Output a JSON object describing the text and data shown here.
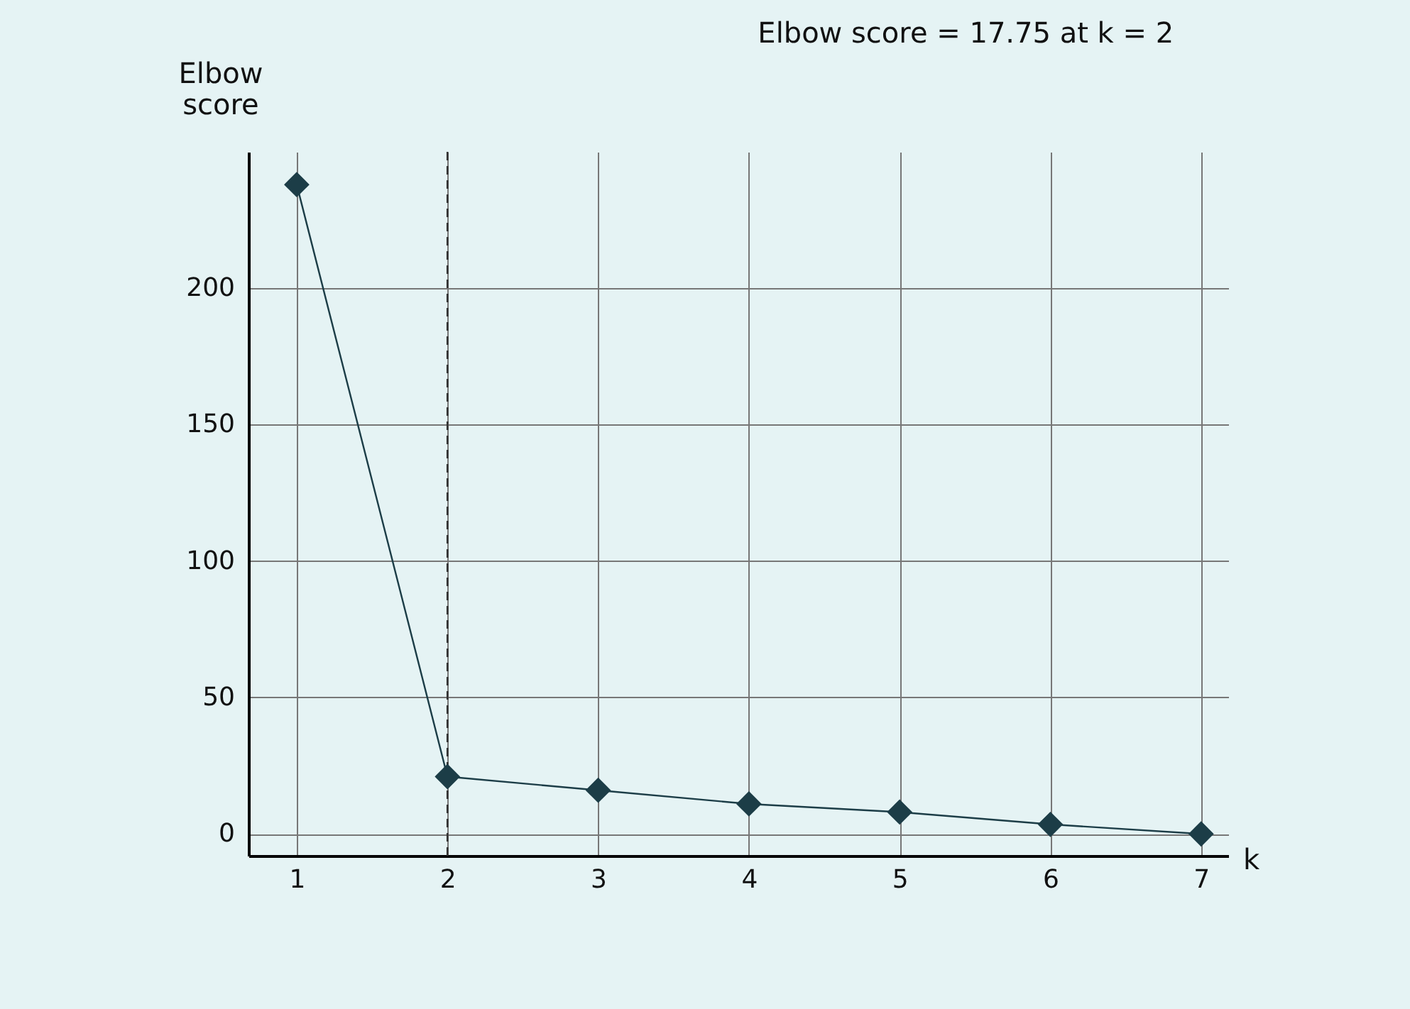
{
  "chart_data": {
    "type": "line",
    "title": "Elbow score = 17.75 at k = 2",
    "xlabel": "k",
    "ylabel": "Elbow score",
    "x": [
      1,
      2,
      3,
      4,
      5,
      6,
      7
    ],
    "series": [
      {
        "color": "#1c3d47",
        "values": [
          238,
          21,
          16,
          11,
          8,
          3.5,
          0
        ]
      }
    ],
    "xlim": [
      0.68,
      7.18
    ],
    "xticks": [
      1,
      2,
      3,
      4,
      5,
      6,
      7
    ],
    "ylim": [
      -8,
      250
    ],
    "yticks": [
      0,
      50,
      100,
      150,
      200
    ],
    "ref_lines": [
      {
        "axis": "x",
        "value": 2,
        "color": "#333333",
        "line_style": "dashed"
      }
    ],
    "grid": true,
    "marker": "diamond",
    "line_style": "solid"
  }
}
